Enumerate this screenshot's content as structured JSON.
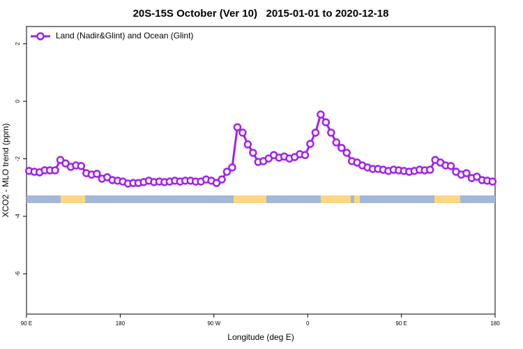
{
  "chart_data": {
    "type": "line",
    "title": "20S-15S October (Ver 10)   2015-01-01 to 2020-12-18",
    "x_label": "Longitude (deg E)",
    "y_label": "XCO2 - MLO trend (ppm)",
    "xlim": [
      90,
      540
    ],
    "xticks": [
      {
        "value": 90,
        "label": "90 E"
      },
      {
        "value": 180,
        "label": "180"
      },
      {
        "value": 270,
        "label": "90 W"
      },
      {
        "value": 360,
        "label": "0"
      },
      {
        "value": 450,
        "label": "90 E"
      },
      {
        "value": 540,
        "label": "180"
      }
    ],
    "ylim": [
      -7.4,
      2.6
    ],
    "yticks": [
      2,
      0,
      -2,
      -4,
      -6
    ],
    "grid": false,
    "legend_position": "top-left",
    "x": [
      92.5,
      97.5,
      102.5,
      107.5,
      112.5,
      117.5,
      122.5,
      127.5,
      132.5,
      137.5,
      142.5,
      147.5,
      152.5,
      157.5,
      162.5,
      167.5,
      172.5,
      177.5,
      182.5,
      187.5,
      192.5,
      197.5,
      202.5,
      207.5,
      212.5,
      217.5,
      222.5,
      227.5,
      232.5,
      237.5,
      242.5,
      247.5,
      252.5,
      257.5,
      262.5,
      267.5,
      272.5,
      277.5,
      282.5,
      287.5,
      292.5,
      297.5,
      302.5,
      307.5,
      312.5,
      317.5,
      322.5,
      327.5,
      332.5,
      337.5,
      342.5,
      347.5,
      352.5,
      357.5,
      362.5,
      367.5,
      372.5,
      377.5,
      382.5,
      387.5,
      392.5,
      397.5,
      402.5,
      407.5,
      412.5,
      417.5,
      422.5,
      427.5,
      432.5,
      437.5,
      442.5,
      447.5,
      452.5,
      457.5,
      462.5,
      467.5,
      472.5,
      477.5,
      482.5,
      487.5,
      492.5,
      497.5,
      502.5,
      507.5,
      512.5,
      517.5,
      522.5,
      527.5,
      532.5,
      537.5
    ],
    "series": [
      {
        "name": "Land (Nadir&Glint) and Ocean (Glint)",
        "color": "#a020f0",
        "values": [
          -2.42,
          -2.45,
          -2.47,
          -2.4,
          -2.4,
          -2.4,
          -2.04,
          -2.16,
          -2.28,
          -2.23,
          -2.25,
          -2.5,
          -2.55,
          -2.52,
          -2.69,
          -2.64,
          -2.74,
          -2.76,
          -2.79,
          -2.86,
          -2.84,
          -2.84,
          -2.81,
          -2.76,
          -2.81,
          -2.79,
          -2.81,
          -2.79,
          -2.76,
          -2.79,
          -2.76,
          -2.76,
          -2.79,
          -2.79,
          -2.72,
          -2.76,
          -2.84,
          -2.72,
          -2.45,
          -2.3,
          -0.9,
          -1.09,
          -1.5,
          -1.79,
          -2.11,
          -2.08,
          -1.99,
          -1.87,
          -1.96,
          -1.92,
          -1.99,
          -1.94,
          -1.84,
          -1.87,
          -1.48,
          -1.09,
          -0.46,
          -0.73,
          -1.09,
          -1.43,
          -1.62,
          -1.79,
          -2.08,
          -2.13,
          -2.23,
          -2.3,
          -2.35,
          -2.35,
          -2.38,
          -2.42,
          -2.38,
          -2.4,
          -2.42,
          -2.45,
          -2.42,
          -2.38,
          -2.4,
          -2.38,
          -2.04,
          -2.13,
          -2.23,
          -2.25,
          -2.45,
          -2.55,
          -2.5,
          -2.67,
          -2.62,
          -2.74,
          -2.76,
          -2.79
        ]
      }
    ]
  }
}
